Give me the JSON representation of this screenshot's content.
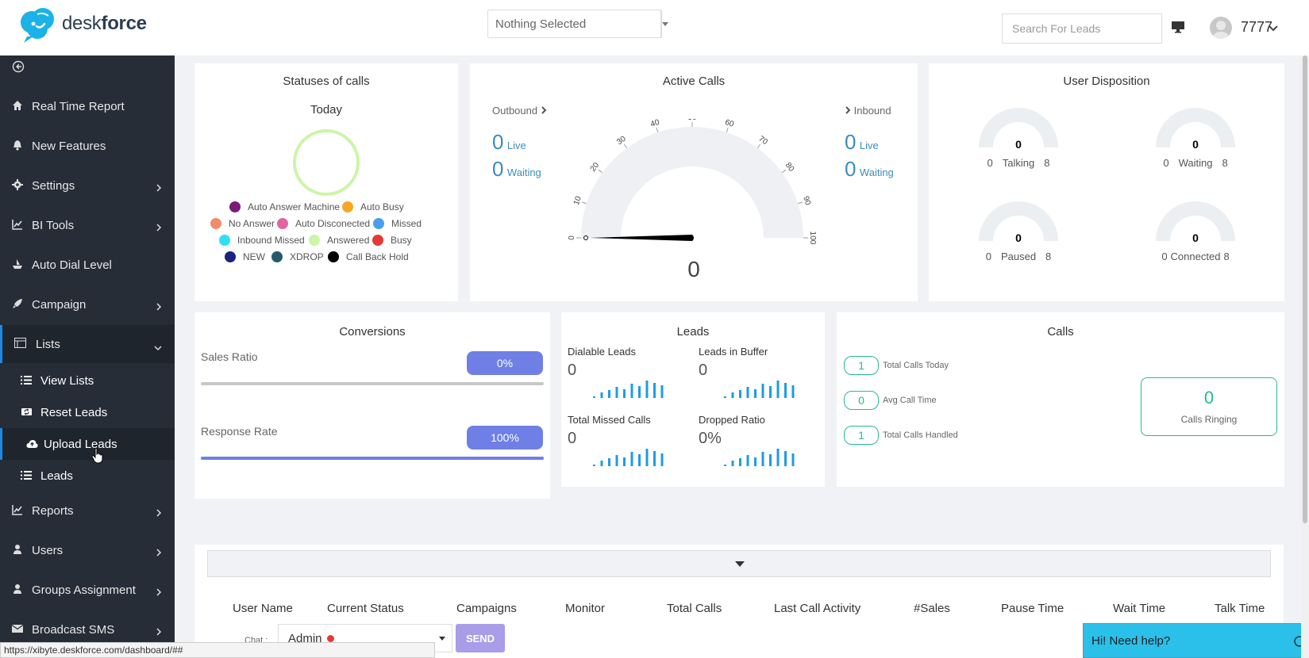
{
  "header": {
    "logo_text_plain": "desk",
    "logo_text_bold": "force",
    "campaign_select": "Nothing Selected",
    "search_placeholder": "Search For Leads",
    "username": "7777"
  },
  "sidebar": {
    "items": [
      {
        "label": "Real Time Report",
        "icon": "home-icon"
      },
      {
        "label": "New Features",
        "icon": "bell-icon"
      },
      {
        "label": "Settings",
        "icon": "gear-icon"
      },
      {
        "label": "BI Tools",
        "icon": "chart-line-icon"
      },
      {
        "label": "Auto Dial Level",
        "icon": "ship-icon"
      },
      {
        "label": "Campaign",
        "icon": "rocket-icon"
      },
      {
        "label": "Lists",
        "icon": "list-icon"
      },
      {
        "label": "Reports",
        "icon": "chart-line-icon"
      },
      {
        "label": "Users",
        "icon": "user-icon"
      },
      {
        "label": "Groups Assignment",
        "icon": "user-icon"
      },
      {
        "label": "Broadcast SMS",
        "icon": "envelope-icon"
      }
    ],
    "sub_items": [
      {
        "label": "View Lists"
      },
      {
        "label": "Reset Leads"
      },
      {
        "label": "Upload Leads"
      },
      {
        "label": "Leads"
      }
    ]
  },
  "statuses": {
    "title": "Statuses of calls",
    "subtitle": "Today",
    "legend": [
      {
        "label": "Auto Answer Machine",
        "color": "#7b1a7b"
      },
      {
        "label": "Auto Busy",
        "color": "#f5a623"
      },
      {
        "label": "No Answer",
        "color": "#f28b6b"
      },
      {
        "label": "Auto Disconected",
        "color": "#e066a3"
      },
      {
        "label": "Missed",
        "color": "#4a9ef0"
      },
      {
        "label": "Inbound Missed",
        "color": "#2ee0f0"
      },
      {
        "label": "Answered",
        "color": "#ccf5a8"
      },
      {
        "label": "Busy",
        "color": "#e53935"
      },
      {
        "label": "NEW",
        "color": "#1a237e"
      },
      {
        "label": "XDROP",
        "color": "#255a6b"
      },
      {
        "label": "Call Back Hold",
        "color": "#000000"
      }
    ]
  },
  "active_calls": {
    "title": "Active Calls",
    "outbound_label": "Outbound",
    "inbound_label": "Inbound",
    "outbound_live": "0",
    "outbound_waiting": "0",
    "inbound_live": "0",
    "inbound_waiting": "0",
    "live_label": "Live",
    "waiting_label": "Waiting",
    "gauge_value": "0",
    "gauge_ticks": [
      "0",
      "10",
      "20",
      "30",
      "40",
      "50",
      "60",
      "70",
      "80",
      "90",
      "100"
    ]
  },
  "user_disposition": {
    "title": "User Disposition",
    "gauges": [
      {
        "value": "0",
        "min": "0",
        "label": "Talking",
        "max": "8"
      },
      {
        "value": "0",
        "min": "0",
        "label": "Waiting",
        "max": "8"
      },
      {
        "value": "0",
        "min": "0",
        "label": "Paused",
        "max": "8"
      },
      {
        "value": "0",
        "min": "0",
        "label": "Connected",
        "max": "8"
      }
    ]
  },
  "conversions": {
    "title": "Conversions",
    "sales_label": "Sales Ratio",
    "sales_value": "0%",
    "sales_fraction": 0,
    "response_label": "Response Rate",
    "response_value": "100%",
    "response_fraction": 1
  },
  "leads": {
    "title": "Leads",
    "items": [
      {
        "label": "Dialable Leads",
        "value": "0"
      },
      {
        "label": "Leads in Buffer",
        "value": "0"
      },
      {
        "label": "Total Missed Calls",
        "value": "0"
      },
      {
        "label": "Dropped Ratio",
        "value": "0%"
      }
    ]
  },
  "calls": {
    "title": "Calls",
    "rows": [
      {
        "value": "1",
        "label": "Total Calls Today"
      },
      {
        "value": "0",
        "label": "Avg Call Time"
      },
      {
        "value": "1",
        "label": "Total Calls Handled"
      }
    ],
    "ringing_value": "0",
    "ringing_label": "Calls Ringing"
  },
  "table": {
    "columns": [
      "User Name",
      "Current Status",
      "Campaigns",
      "Monitor",
      "Total Calls",
      "Last Call Activity",
      "#Sales",
      "Pause Time",
      "Wait Time",
      "Talk Time"
    ]
  },
  "chat": {
    "label": "Chat :",
    "selected": "Admin",
    "send_label": "SEND"
  },
  "status_url": "https://xibyte.deskforce.com/dashboard/##",
  "help_text": "Hi! Need help?"
}
